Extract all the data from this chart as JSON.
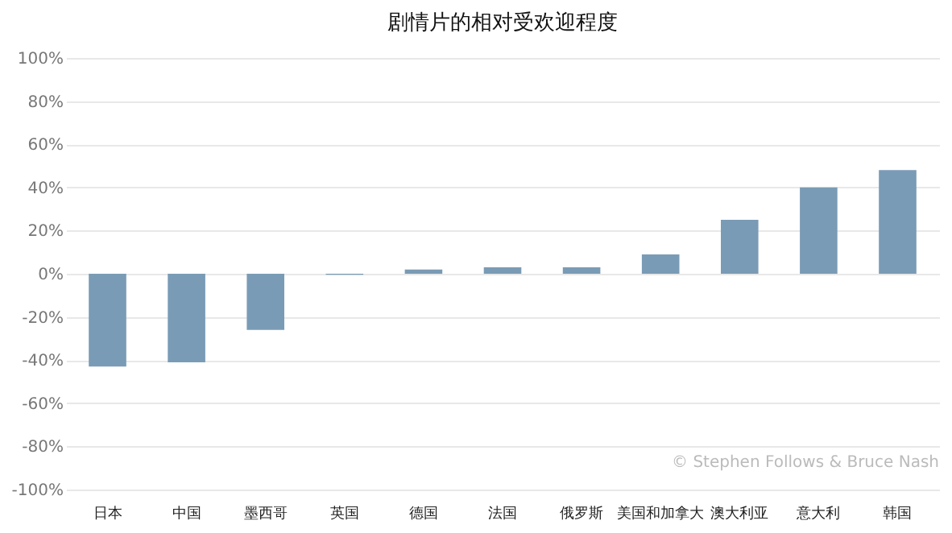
{
  "chart_data": {
    "type": "bar",
    "title": "剧情片的相对受欢迎程度",
    "categories": [
      "日本",
      "中国",
      "墨西哥",
      "英国",
      "德国",
      "法国",
      "俄罗斯",
      "美国和加拿大",
      "澳大利亚",
      "意大利",
      "韩国"
    ],
    "values": [
      -43,
      -41,
      -26,
      -0.5,
      2,
      3,
      3,
      9,
      25,
      40,
      48
    ],
    "color": "#7a9bb5",
    "ylim": [
      -100,
      100
    ],
    "yticks": [
      {
        "value": -100,
        "label": "-100%"
      },
      {
        "value": -80,
        "label": "-80%"
      },
      {
        "value": -60,
        "label": "-60%"
      },
      {
        "value": -40,
        "label": "-40%"
      },
      {
        "value": -20,
        "label": "-20%"
      },
      {
        "value": 0,
        "label": "0%"
      },
      {
        "value": 20,
        "label": "20%"
      },
      {
        "value": 40,
        "label": "40%"
      },
      {
        "value": 60,
        "label": "60%"
      },
      {
        "value": 80,
        "label": "80%"
      },
      {
        "value": 100,
        "label": "100%"
      }
    ],
    "grid": "y",
    "annotations": [
      "© Stephen Follows & Bruce Nash"
    ]
  }
}
